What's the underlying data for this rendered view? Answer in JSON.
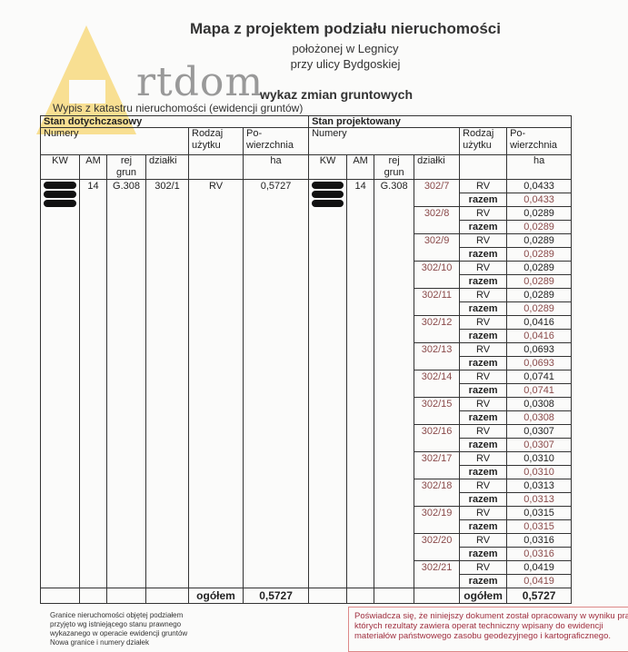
{
  "header": {
    "title": "Mapa z projektem podziału nieruchomości",
    "location_line1": "położonej w Legnicy",
    "location_line2": "przy ulicy Bydgoskiej",
    "watermark": "Artdom",
    "section_title": "wykaz zmian gruntowych",
    "extract_label": "Wypis z katastru nieruchomości (ewidencji gruntów)"
  },
  "table": {
    "current_state": "Stan dotychczasowy",
    "projected_state": "Stan projektowany",
    "col_numbers": "Numery",
    "col_use": "Rodzaj użytku",
    "col_area": "Po-wierzchnia",
    "col_kw": "KW",
    "col_am": "AM",
    "col_rej": "rej grun",
    "col_dzialki": "działki",
    "col_ha": "ha",
    "current": {
      "kw": "[redacted]",
      "am": "14",
      "rej": "G.308",
      "dzialka": "302/1",
      "use": "RV",
      "area": "0,5727"
    },
    "projected_common": {
      "kw": "[redacted]",
      "am": "14",
      "rej": "G.308"
    },
    "razem_label": "razem",
    "parcels": [
      {
        "id": "302/7",
        "use": "RV",
        "area": "0,0433",
        "total": "0,0433"
      },
      {
        "id": "302/8",
        "use": "RV",
        "area": "0,0289",
        "total": "0,0289"
      },
      {
        "id": "302/9",
        "use": "RV",
        "area": "0,0289",
        "total": "0,0289"
      },
      {
        "id": "302/10",
        "use": "RV",
        "area": "0,0289",
        "total": "0,0289"
      },
      {
        "id": "302/11",
        "use": "RV",
        "area": "0,0289",
        "total": "0,0289"
      },
      {
        "id": "302/12",
        "use": "RV",
        "area": "0,0416",
        "total": "0,0416"
      },
      {
        "id": "302/13",
        "use": "RV",
        "area": "0,0693",
        "total": "0,0693"
      },
      {
        "id": "302/14",
        "use": "RV",
        "area": "0,0741",
        "total": "0,0741"
      },
      {
        "id": "302/15",
        "use": "RV",
        "area": "0,0308",
        "total": "0,0308"
      },
      {
        "id": "302/16",
        "use": "RV",
        "area": "0,0307",
        "total": "0,0307"
      },
      {
        "id": "302/17",
        "use": "RV",
        "area": "0,0310",
        "total": "0,0310"
      },
      {
        "id": "302/18",
        "use": "RV",
        "area": "0,0313",
        "total": "0,0313"
      },
      {
        "id": "302/19",
        "use": "RV",
        "area": "0,0315",
        "total": "0,0315"
      },
      {
        "id": "302/20",
        "use": "RV",
        "area": "0,0316",
        "total": "0,0316"
      },
      {
        "id": "302/21",
        "use": "RV",
        "area": "0,0419",
        "total": "0,0419"
      }
    ],
    "total_label": "ogółem",
    "total_current": "0,5727",
    "total_projected": "0,5727"
  },
  "footer": {
    "note": [
      "Granice nieruchomości objętej podziałem",
      "przyjęto wg istniejącego stanu prawnego",
      "wykazanego w operacie ewidencji gruntów",
      "Nowa granice i numery działek"
    ],
    "certification": [
      "Poświadcza się, że niniejszy dokument został opracowany w wyniku pra",
      "których rezultaty zawiera operat techniczny wpisany do ewidencji",
      "materiałów państwowego zasobu geodezyjnego i kartograficznego."
    ]
  },
  "colors": {
    "razem_value": "#8a4a4a",
    "parcel_id": "#8a4a4a",
    "certification": "#a03040",
    "watermark_a": "#f5c83c"
  }
}
